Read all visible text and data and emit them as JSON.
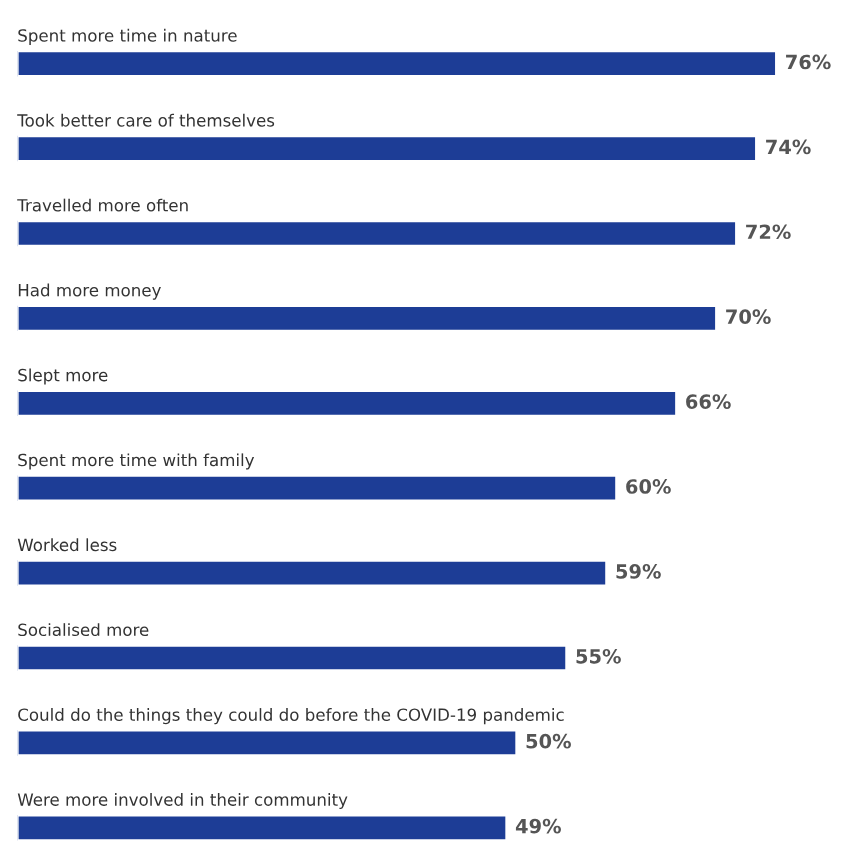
{
  "chart_data": {
    "type": "bar",
    "orientation": "horizontal",
    "categories": [
      "Spent more time in nature",
      "Took better care of themselves",
      "Travelled more often",
      "Had more money",
      "Slept more",
      "Spent more time with family",
      "Worked less",
      "Socialised more",
      "Could do the things they could do before the COVID-19 pandemic",
      "Were more involved in their community"
    ],
    "values": [
      76,
      74,
      72,
      70,
      66,
      60,
      59,
      55,
      50,
      49
    ],
    "value_labels": [
      "76%",
      "74%",
      "72%",
      "70%",
      "66%",
      "60%",
      "59%",
      "55%",
      "50%",
      "49%"
    ],
    "color": "#1d3d96"
  }
}
